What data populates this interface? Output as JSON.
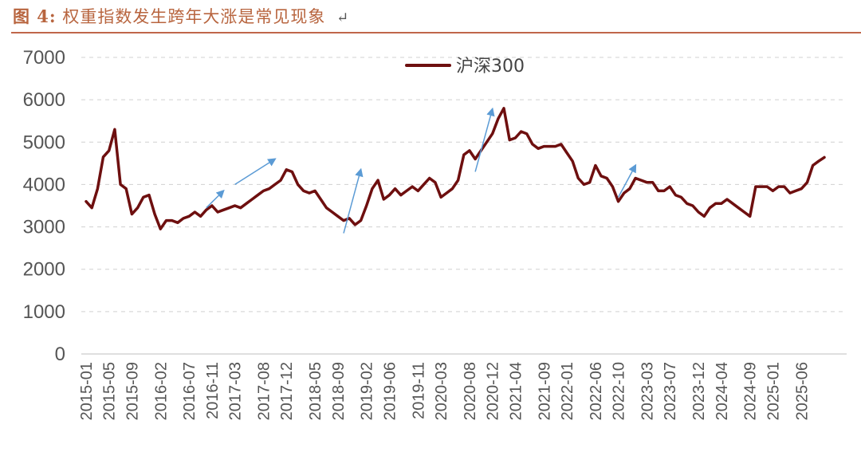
{
  "figure": {
    "label": "图 4:",
    "title": "权重指数发生跨年大涨是常见现象",
    "return_mark": "↵"
  },
  "colors": {
    "series": "#6e0f0f",
    "arrow": "#5b9bd5",
    "grid": "#d0d0d0",
    "title": "#b8653f"
  },
  "chart_data": {
    "type": "line",
    "title": "",
    "xlabel": "",
    "ylabel": "",
    "ylim": [
      0,
      7000
    ],
    "yticks": [
      0,
      1000,
      2000,
      3000,
      4000,
      5000,
      6000,
      7000
    ],
    "grid": "horizontal dashed",
    "legend_position": "top-center",
    "x_tick_labels": [
      "2015-01",
      "2015-05",
      "2015-09",
      "2016-02",
      "2016-07",
      "2016-11",
      "2017-03",
      "2017-08",
      "2017-12",
      "2018-05",
      "2018-09",
      "2019-02",
      "2019-06",
      "2019-11",
      "2020-03",
      "2020-08",
      "2020-12",
      "2021-04",
      "2021-09",
      "2022-01",
      "2022-06",
      "2022-10",
      "2023-03",
      "2023-07",
      "2023-12",
      "2024-04",
      "2024-09",
      "2025-01",
      "2025-06"
    ],
    "series": [
      {
        "name": "沪深300",
        "points": [
          [
            "2015-01",
            3600
          ],
          [
            "2015-02",
            3450
          ],
          [
            "2015-03",
            3900
          ],
          [
            "2015-04",
            4650
          ],
          [
            "2015-05",
            4800
          ],
          [
            "2015-06",
            5300
          ],
          [
            "2015-07",
            4000
          ],
          [
            "2015-08",
            3900
          ],
          [
            "2015-09",
            3300
          ],
          [
            "2015-10",
            3450
          ],
          [
            "2015-11",
            3700
          ],
          [
            "2015-12",
            3750
          ],
          [
            "2016-01",
            3300
          ],
          [
            "2016-02",
            2950
          ],
          [
            "2016-03",
            3150
          ],
          [
            "2016-04",
            3150
          ],
          [
            "2016-05",
            3100
          ],
          [
            "2016-06",
            3200
          ],
          [
            "2016-07",
            3250
          ],
          [
            "2016-08",
            3350
          ],
          [
            "2016-09",
            3250
          ],
          [
            "2016-10",
            3400
          ],
          [
            "2016-11",
            3500
          ],
          [
            "2016-12",
            3350
          ],
          [
            "2017-01",
            3400
          ],
          [
            "2017-02",
            3450
          ],
          [
            "2017-03",
            3500
          ],
          [
            "2017-04",
            3450
          ],
          [
            "2017-05",
            3550
          ],
          [
            "2017-06",
            3650
          ],
          [
            "2017-07",
            3750
          ],
          [
            "2017-08",
            3850
          ],
          [
            "2017-09",
            3900
          ],
          [
            "2017-10",
            4000
          ],
          [
            "2017-11",
            4100
          ],
          [
            "2017-12",
            4350
          ],
          [
            "2018-01",
            4300
          ],
          [
            "2018-02",
            4000
          ],
          [
            "2018-03",
            3850
          ],
          [
            "2018-04",
            3800
          ],
          [
            "2018-05",
            3850
          ],
          [
            "2018-06",
            3650
          ],
          [
            "2018-07",
            3450
          ],
          [
            "2018-08",
            3350
          ],
          [
            "2018-09",
            3250
          ],
          [
            "2018-10",
            3150
          ],
          [
            "2018-11",
            3200
          ],
          [
            "2018-12",
            3050
          ],
          [
            "2019-01",
            3150
          ],
          [
            "2019-02",
            3500
          ],
          [
            "2019-03",
            3900
          ],
          [
            "2019-04",
            4100
          ],
          [
            "2019-05",
            3650
          ],
          [
            "2019-06",
            3750
          ],
          [
            "2019-07",
            3900
          ],
          [
            "2019-08",
            3750
          ],
          [
            "2019-09",
            3850
          ],
          [
            "2019-10",
            3950
          ],
          [
            "2019-11",
            3850
          ],
          [
            "2019-12",
            4000
          ],
          [
            "2020-01",
            4150
          ],
          [
            "2020-02",
            4050
          ],
          [
            "2020-03",
            3700
          ],
          [
            "2020-04",
            3800
          ],
          [
            "2020-05",
            3900
          ],
          [
            "2020-06",
            4100
          ],
          [
            "2020-07",
            4700
          ],
          [
            "2020-08",
            4800
          ],
          [
            "2020-09",
            4600
          ],
          [
            "2020-10",
            4800
          ],
          [
            "2020-11",
            5000
          ],
          [
            "2020-12",
            5200
          ],
          [
            "2021-01",
            5550
          ],
          [
            "2021-02",
            5800
          ],
          [
            "2021-03",
            5050
          ],
          [
            "2021-04",
            5100
          ],
          [
            "2021-05",
            5250
          ],
          [
            "2021-06",
            5200
          ],
          [
            "2021-07",
            4950
          ],
          [
            "2021-08",
            4850
          ],
          [
            "2021-09",
            4900
          ],
          [
            "2021-10",
            4900
          ],
          [
            "2021-11",
            4900
          ],
          [
            "2021-12",
            4950
          ],
          [
            "2022-01",
            4750
          ],
          [
            "2022-02",
            4550
          ],
          [
            "2022-03",
            4150
          ],
          [
            "2022-04",
            4000
          ],
          [
            "2022-05",
            4050
          ],
          [
            "2022-06",
            4450
          ],
          [
            "2022-07",
            4200
          ],
          [
            "2022-08",
            4150
          ],
          [
            "2022-09",
            3950
          ],
          [
            "2022-10",
            3600
          ],
          [
            "2022-11",
            3800
          ],
          [
            "2022-12",
            3900
          ],
          [
            "2023-01",
            4150
          ],
          [
            "2023-02",
            4100
          ],
          [
            "2023-03",
            4050
          ],
          [
            "2023-04",
            4050
          ],
          [
            "2023-05",
            3850
          ],
          [
            "2023-06",
            3850
          ],
          [
            "2023-07",
            3950
          ],
          [
            "2023-08",
            3750
          ],
          [
            "2023-09",
            3700
          ],
          [
            "2023-10",
            3550
          ],
          [
            "2023-11",
            3500
          ],
          [
            "2023-12",
            3350
          ],
          [
            "2024-01",
            3250
          ],
          [
            "2024-02",
            3450
          ],
          [
            "2024-03",
            3550
          ],
          [
            "2024-04",
            3550
          ],
          [
            "2024-05",
            3650
          ],
          [
            "2024-06",
            3550
          ],
          [
            "2024-07",
            3450
          ],
          [
            "2024-08",
            3350
          ],
          [
            "2024-09",
            3250
          ],
          [
            "2024-10",
            3950
          ],
          [
            "2024-11",
            3950
          ],
          [
            "2024-12",
            3950
          ],
          [
            "2025-01",
            3850
          ],
          [
            "2025-02",
            3950
          ],
          [
            "2025-03",
            3950
          ],
          [
            "2025-04",
            3800
          ],
          [
            "2025-05",
            3850
          ],
          [
            "2025-06",
            3900
          ],
          [
            "2025-07",
            4050
          ],
          [
            "2025-08",
            4450
          ],
          [
            "2025-09",
            4550
          ],
          [
            "2025-10",
            4640
          ]
        ]
      }
    ],
    "annotations": [
      {
        "type": "arrow",
        "from": [
          "2016-10",
          3450
        ],
        "to": [
          "2017-01",
          3850
        ]
      },
      {
        "type": "arrow",
        "from": [
          "2017-03",
          4000
        ],
        "to": [
          "2017-10",
          4600
        ]
      },
      {
        "type": "arrow",
        "from": [
          "2018-10",
          2850
        ],
        "to": [
          "2019-01",
          4350
        ]
      },
      {
        "type": "arrow",
        "from": [
          "2020-09",
          4300
        ],
        "to": [
          "2020-12",
          5780
        ]
      },
      {
        "type": "arrow",
        "from": [
          "2022-10",
          3700
        ],
        "to": [
          "2023-01",
          4450
        ]
      }
    ]
  }
}
